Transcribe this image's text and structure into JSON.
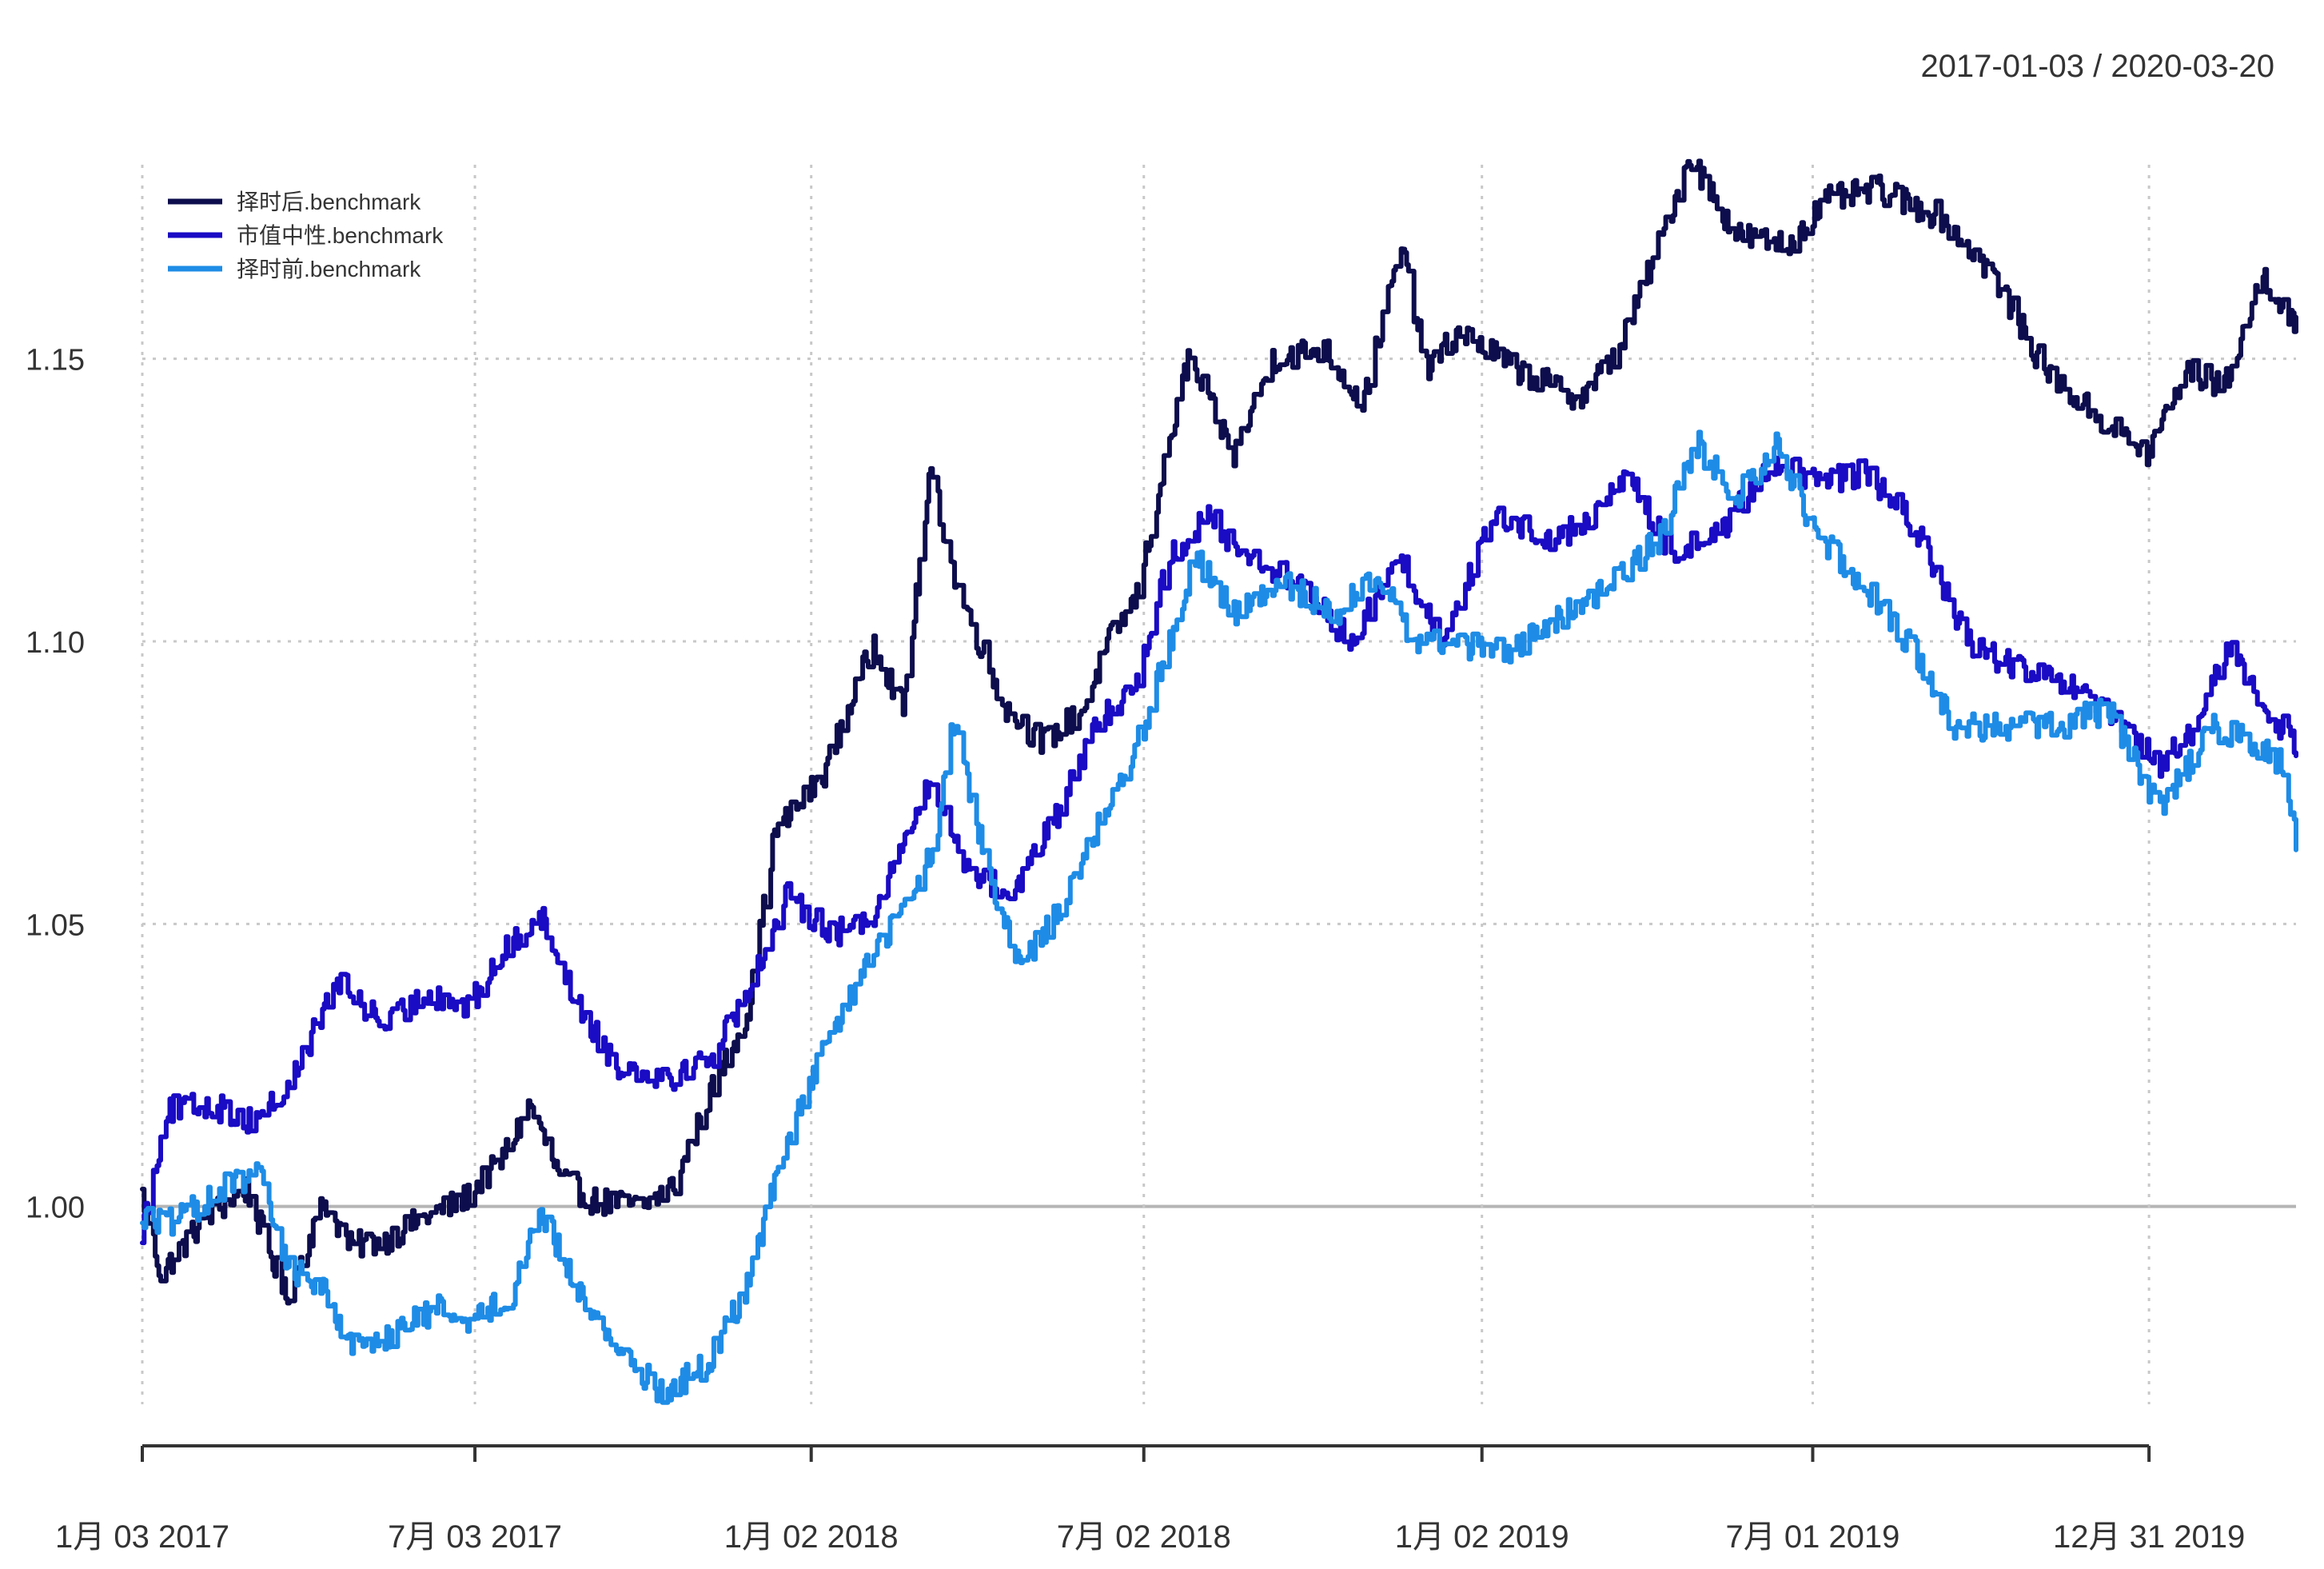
{
  "chart_data": {
    "type": "line",
    "date_range_label": "2017-01-03 / 2020-03-20",
    "x_tick_labels": [
      "1月 03 2017",
      "7月 03 2017",
      "1月 02 2018",
      "7月 02 2018",
      "1月 02 2019",
      "7月 01 2019",
      "12月 31 2019"
    ],
    "x_tick_dates": [
      "2017-01-03",
      "2017-07-03",
      "2018-01-02",
      "2018-07-02",
      "2019-01-02",
      "2019-07-01",
      "2019-12-31"
    ],
    "x_range": [
      "2017-01-03",
      "2020-03-20"
    ],
    "y_ticks": [
      "1.00",
      "1.05",
      "1.10",
      "1.15"
    ],
    "ylim": [
      0.965,
      1.19
    ],
    "baseline": 1.0,
    "grid": true,
    "legend_position": "top-left",
    "series": [
      {
        "name": "择时后.benchmark",
        "color": "#0d0d4d",
        "points": [
          [
            "2017-01-03",
            1.002
          ],
          [
            "2017-01-13",
            0.988
          ],
          [
            "2017-02-06",
            0.998
          ],
          [
            "2017-03-01",
            1.003
          ],
          [
            "2017-03-22",
            0.984
          ],
          [
            "2017-04-12",
            1.001
          ],
          [
            "2017-04-26",
            0.993
          ],
          [
            "2017-05-15",
            0.994
          ],
          [
            "2017-06-05",
            0.998
          ],
          [
            "2017-06-26",
            1.001
          ],
          [
            "2017-07-17",
            1.008
          ],
          [
            "2017-08-02",
            1.018
          ],
          [
            "2017-08-18",
            1.005
          ],
          [
            "2017-09-05",
            1.001
          ],
          [
            "2017-10-02",
            1.0
          ],
          [
            "2017-10-20",
            1.004
          ],
          [
            "2017-11-08",
            1.02
          ],
          [
            "2017-11-29",
            1.035
          ],
          [
            "2017-12-13",
            1.066
          ],
          [
            "2018-01-08",
            1.076
          ],
          [
            "2018-02-05",
            1.1
          ],
          [
            "2018-02-21",
            1.088
          ],
          [
            "2018-03-08",
            1.13
          ],
          [
            "2018-03-22",
            1.11
          ],
          [
            "2018-04-18",
            1.088
          ],
          [
            "2018-05-08",
            1.082
          ],
          [
            "2018-05-30",
            1.088
          ],
          [
            "2018-06-13",
            1.1
          ],
          [
            "2018-06-28",
            1.108
          ],
          [
            "2018-07-26",
            1.15
          ],
          [
            "2018-08-20",
            1.133
          ],
          [
            "2018-09-10",
            1.15
          ],
          [
            "2018-10-08",
            1.152
          ],
          [
            "2018-10-29",
            1.142
          ],
          [
            "2018-11-19",
            1.17
          ],
          [
            "2018-12-03",
            1.148
          ],
          [
            "2018-12-21",
            1.155
          ],
          [
            "2019-01-21",
            1.148
          ],
          [
            "2019-02-25",
            1.143
          ],
          [
            "2019-03-18",
            1.152
          ],
          [
            "2019-04-08",
            1.17
          ],
          [
            "2019-04-25",
            1.186
          ],
          [
            "2019-05-20",
            1.172
          ],
          [
            "2019-06-17",
            1.17
          ],
          [
            "2019-07-08",
            1.178
          ],
          [
            "2019-08-05",
            1.18
          ],
          [
            "2019-09-09",
            1.175
          ],
          [
            "2019-10-07",
            1.165
          ],
          [
            "2019-11-04",
            1.148
          ],
          [
            "2019-12-02",
            1.14
          ],
          [
            "2019-12-30",
            1.133
          ],
          [
            "2020-01-20",
            1.148
          ],
          [
            "2020-02-10",
            1.145
          ],
          [
            "2020-03-02",
            1.165
          ],
          [
            "2020-03-20",
            1.155
          ]
        ]
      },
      {
        "name": "市值中性.benchmark",
        "color": "#1a0bc4",
        "points": [
          [
            "2017-01-03",
            0.996
          ],
          [
            "2017-01-16",
            1.017
          ],
          [
            "2017-02-10",
            1.018
          ],
          [
            "2017-03-01",
            1.015
          ],
          [
            "2017-03-22",
            1.02
          ],
          [
            "2017-04-19",
            1.04
          ],
          [
            "2017-05-15",
            1.032
          ],
          [
            "2017-06-08",
            1.038
          ],
          [
            "2017-06-29",
            1.035
          ],
          [
            "2017-07-19",
            1.045
          ],
          [
            "2017-08-07",
            1.052
          ],
          [
            "2017-08-29",
            1.035
          ],
          [
            "2017-09-18",
            1.025
          ],
          [
            "2017-10-18",
            1.023
          ],
          [
            "2017-11-10",
            1.027
          ],
          [
            "2017-12-01",
            1.04
          ],
          [
            "2017-12-20",
            1.055
          ],
          [
            "2018-01-15",
            1.048
          ],
          [
            "2018-02-05",
            1.052
          ],
          [
            "2018-02-22",
            1.065
          ],
          [
            "2018-03-08",
            1.075
          ],
          [
            "2018-03-28",
            1.06
          ],
          [
            "2018-04-20",
            1.055
          ],
          [
            "2018-05-14",
            1.068
          ],
          [
            "2018-06-06",
            1.085
          ],
          [
            "2018-06-27",
            1.092
          ],
          [
            "2018-07-16",
            1.115
          ],
          [
            "2018-08-06",
            1.122
          ],
          [
            "2018-08-27",
            1.115
          ],
          [
            "2018-09-26",
            1.11
          ],
          [
            "2018-10-22",
            1.1
          ],
          [
            "2018-11-19",
            1.115
          ],
          [
            "2018-12-10",
            1.1
          ],
          [
            "2019-01-09",
            1.122
          ],
          [
            "2019-02-11",
            1.118
          ],
          [
            "2019-03-04",
            1.122
          ],
          [
            "2019-03-22",
            1.13
          ],
          [
            "2019-04-15",
            1.115
          ],
          [
            "2019-05-13",
            1.12
          ],
          [
            "2019-06-10",
            1.132
          ],
          [
            "2019-07-01",
            1.128
          ],
          [
            "2019-07-29",
            1.13
          ],
          [
            "2019-08-26",
            1.12
          ],
          [
            "2019-09-23",
            1.1
          ],
          [
            "2019-10-21",
            1.095
          ],
          [
            "2019-11-18",
            1.092
          ],
          [
            "2019-12-16",
            1.085
          ],
          [
            "2020-01-06",
            1.078
          ],
          [
            "2020-01-27",
            1.085
          ],
          [
            "2020-02-12",
            1.1
          ],
          [
            "2020-03-02",
            1.088
          ],
          [
            "2020-03-20",
            1.082
          ]
        ]
      },
      {
        "name": "择时前.benchmark",
        "color": "#1e8ce6",
        "points": [
          [
            "2017-01-03",
            0.998
          ],
          [
            "2017-01-20",
            0.997
          ],
          [
            "2017-02-15",
            1.003
          ],
          [
            "2017-03-07",
            1.006
          ],
          [
            "2017-03-22",
            0.99
          ],
          [
            "2017-04-12",
            0.985
          ],
          [
            "2017-04-28",
            0.975
          ],
          [
            "2017-05-22",
            0.978
          ],
          [
            "2017-06-12",
            0.982
          ],
          [
            "2017-07-03",
            0.98
          ],
          [
            "2017-07-24",
            0.985
          ],
          [
            "2017-08-07",
            1.0
          ],
          [
            "2017-08-28",
            0.985
          ],
          [
            "2017-09-18",
            0.975
          ],
          [
            "2017-10-13",
            0.967
          ],
          [
            "2017-11-06",
            0.972
          ],
          [
            "2017-11-27",
            0.985
          ],
          [
            "2017-12-18",
            1.01
          ],
          [
            "2018-01-12",
            1.03
          ],
          [
            "2018-02-05",
            1.045
          ],
          [
            "2018-02-26",
            1.055
          ],
          [
            "2018-03-12",
            1.065
          ],
          [
            "2018-03-19",
            1.087
          ],
          [
            "2018-04-09",
            1.058
          ],
          [
            "2018-04-25",
            1.042
          ],
          [
            "2018-05-21",
            1.055
          ],
          [
            "2018-06-11",
            1.07
          ],
          [
            "2018-07-02",
            1.085
          ],
          [
            "2018-07-30",
            1.115
          ],
          [
            "2018-08-20",
            1.105
          ],
          [
            "2018-09-17",
            1.11
          ],
          [
            "2018-10-15",
            1.105
          ],
          [
            "2018-11-05",
            1.112
          ],
          [
            "2018-11-26",
            1.1
          ],
          [
            "2018-12-14",
            1.1
          ],
          [
            "2019-01-14",
            1.098
          ],
          [
            "2019-02-18",
            1.105
          ],
          [
            "2019-03-11",
            1.11
          ],
          [
            "2019-04-08",
            1.118
          ],
          [
            "2019-04-29",
            1.135
          ],
          [
            "2019-05-20",
            1.125
          ],
          [
            "2019-06-10",
            1.135
          ],
          [
            "2019-07-01",
            1.12
          ],
          [
            "2019-07-29",
            1.11
          ],
          [
            "2019-08-26",
            1.098
          ],
          [
            "2019-09-16",
            1.085
          ],
          [
            "2019-10-14",
            1.085
          ],
          [
            "2019-11-11",
            1.085
          ],
          [
            "2019-12-09",
            1.088
          ],
          [
            "2020-01-06",
            1.07
          ],
          [
            "2020-02-03",
            1.085
          ],
          [
            "2020-02-24",
            1.082
          ],
          [
            "2020-03-13",
            1.078
          ],
          [
            "2020-03-20",
            1.065
          ]
        ]
      }
    ]
  }
}
